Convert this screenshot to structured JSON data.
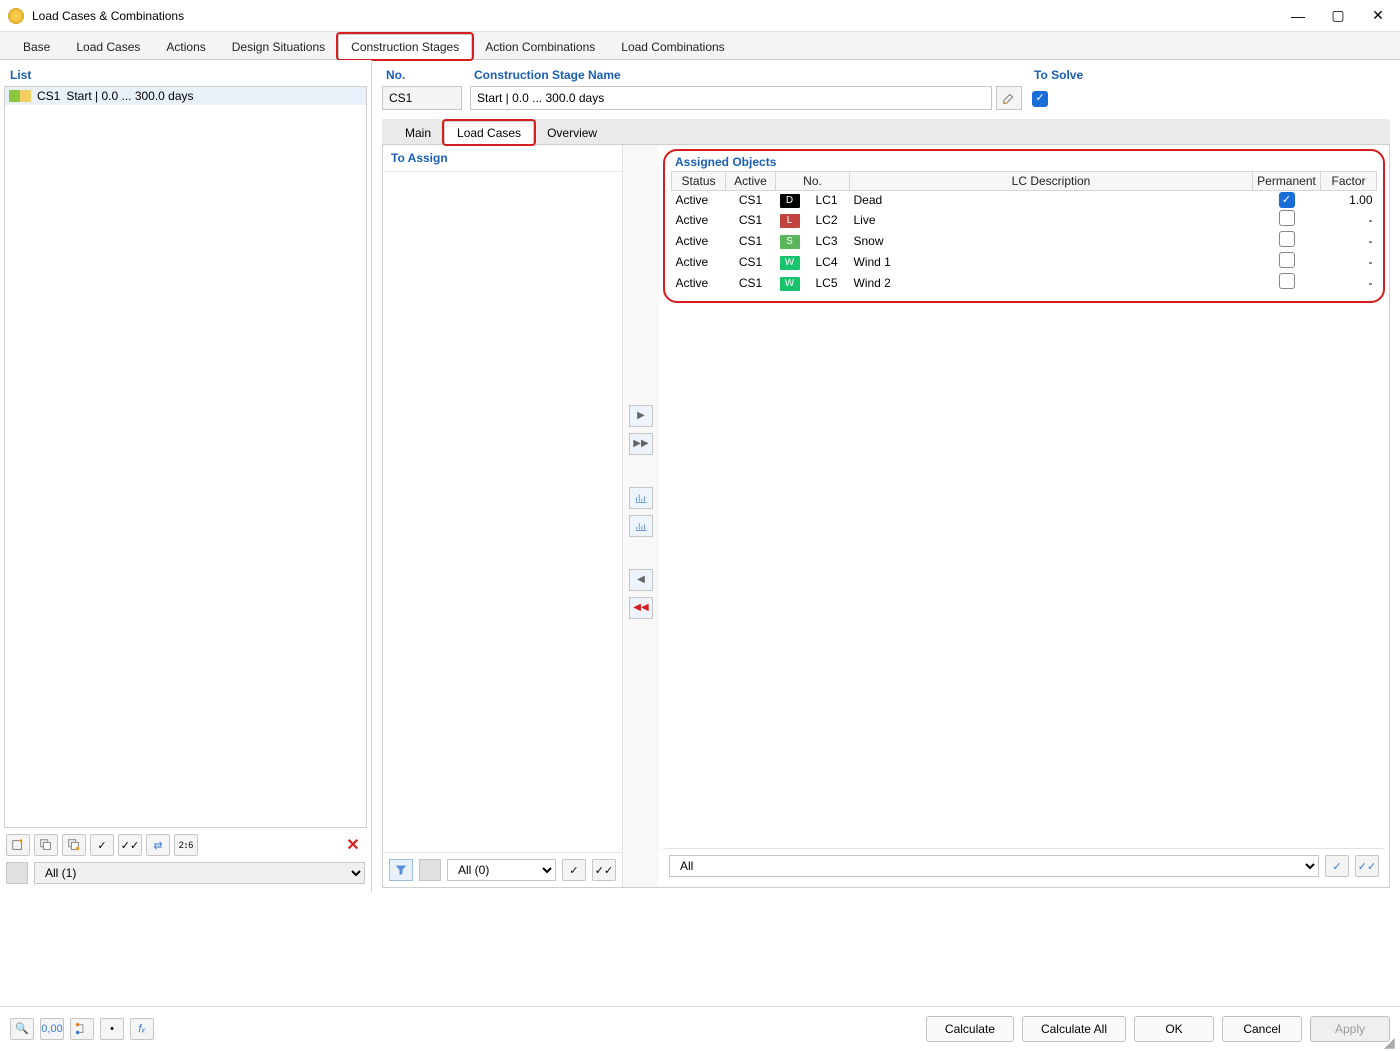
{
  "window": {
    "title": "Load Cases & Combinations"
  },
  "main_tabs": [
    "Base",
    "Load Cases",
    "Actions",
    "Design Situations",
    "Construction Stages",
    "Action Combinations",
    "Load Combinations"
  ],
  "main_tab_active_index": 4,
  "list": {
    "header": "List",
    "items": [
      {
        "id": "CS1",
        "label": "Start | 0.0 ... 300.0 days",
        "color1": "#8cc63f",
        "color2": "#f0d060"
      }
    ],
    "filter_label": "All (1)"
  },
  "fields": {
    "no_label": "No.",
    "no_value": "CS1",
    "name_label": "Construction Stage Name",
    "name_value": "Start | 0.0 ... 300.0 days",
    "solve_label": "To Solve",
    "solve_checked": true
  },
  "sub_tabs": [
    "Main",
    "Load Cases",
    "Overview"
  ],
  "sub_tab_active_index": 1,
  "assign": {
    "to_assign_label": "To Assign",
    "assigned_title": "Assigned Objects",
    "columns": [
      "Status",
      "Active",
      "",
      "No.",
      "LC Description",
      "Permanent",
      "Factor"
    ],
    "col_widths": [
      "54px",
      "50px",
      "28px",
      "46px",
      "auto",
      "68px",
      "56px"
    ],
    "rows": [
      {
        "status": "Active",
        "active": "CS1",
        "type_letter": "D",
        "type_bg": "#000000",
        "no": "LC1",
        "desc": "Dead",
        "permanent": true,
        "factor": "1.00"
      },
      {
        "status": "Active",
        "active": "CS1",
        "type_letter": "L",
        "type_bg": "#c1443f",
        "no": "LC2",
        "desc": "Live",
        "permanent": false,
        "factor": "-"
      },
      {
        "status": "Active",
        "active": "CS1",
        "type_letter": "S",
        "type_bg": "#5bb55b",
        "no": "LC3",
        "desc": "Snow",
        "permanent": false,
        "factor": "-"
      },
      {
        "status": "Active",
        "active": "CS1",
        "type_letter": "W",
        "type_bg": "#19c36b",
        "no": "LC4",
        "desc": "Wind 1",
        "permanent": false,
        "factor": "-"
      },
      {
        "status": "Active",
        "active": "CS1",
        "type_letter": "W",
        "type_bg": "#19c36b",
        "no": "LC5",
        "desc": "Wind 2",
        "permanent": false,
        "factor": "-"
      }
    ],
    "left_filter": "All (0)",
    "right_filter": "All"
  },
  "footer": {
    "calculate": "Calculate",
    "calculate_all": "Calculate All",
    "ok": "OK",
    "cancel": "Cancel",
    "apply": "Apply"
  },
  "colors": {
    "highlight": "#d71e1e",
    "link_blue": "#1a5fb4",
    "check_blue": "#1a6dd6"
  }
}
